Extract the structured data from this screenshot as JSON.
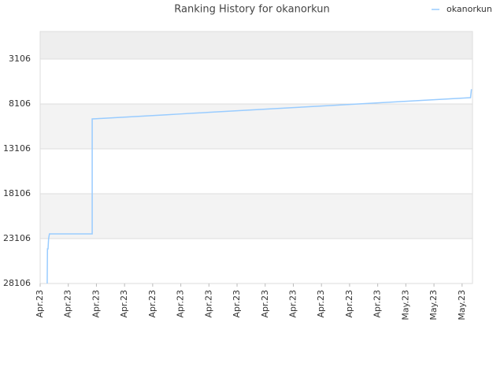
{
  "chart_data": {
    "type": "line",
    "title": "Ranking History for okanorkun",
    "y_inverted": true,
    "grid": true,
    "legend": "top-right",
    "ylim": [
      36,
      28106
    ],
    "yticks": [
      3106,
      8106,
      13106,
      18106,
      23106,
      28106
    ],
    "xlim": [
      0,
      15.37
    ],
    "xticks": [
      {
        "value": 0,
        "label": "Apr.23"
      },
      {
        "value": 1,
        "label": "Apr.23"
      },
      {
        "value": 2,
        "label": "Apr.23"
      },
      {
        "value": 3,
        "label": "Apr.23"
      },
      {
        "value": 4,
        "label": "Apr.23"
      },
      {
        "value": 5,
        "label": "Apr.23"
      },
      {
        "value": 6,
        "label": "Apr.23"
      },
      {
        "value": 7,
        "label": "Apr.23"
      },
      {
        "value": 8,
        "label": "Apr.23"
      },
      {
        "value": 9,
        "label": "Apr.23"
      },
      {
        "value": 10,
        "label": "Apr.23"
      },
      {
        "value": 11,
        "label": "Apr.23"
      },
      {
        "value": 12,
        "label": "Apr.23"
      },
      {
        "value": 13,
        "label": "May.23"
      },
      {
        "value": 14,
        "label": "May.23"
      },
      {
        "value": 15,
        "label": "May.23"
      }
    ],
    "x": [
      0.25,
      0.26,
      0.28,
      0.3,
      0.33,
      1.85,
      1.85,
      2.0,
      2.5,
      3.0,
      3.5,
      4.0,
      4.5,
      5.0,
      5.5,
      6.0,
      6.5,
      7.0,
      7.5,
      8.0,
      8.5,
      9.0,
      9.5,
      10.0,
      10.5,
      11.0,
      11.5,
      12.0,
      12.5,
      13.0,
      13.5,
      14.0,
      14.5,
      15.0,
      15.3,
      15.33,
      15.35
    ],
    "series": [
      {
        "name": "okanorkun",
        "color": "#99ccff",
        "values": [
          28106,
          24246,
          24246,
          23106,
          22580,
          22580,
          9773,
          9747,
          9659,
          9571,
          9483,
          9395,
          9307,
          9219,
          9131,
          9043,
          8955,
          8867,
          8779,
          8691,
          8603,
          8515,
          8427,
          8339,
          8251,
          8163,
          8075,
          7987,
          7899,
          7811,
          7723,
          7635,
          7547,
          7459,
          7404,
          6527,
          6527
        ]
      }
    ]
  }
}
